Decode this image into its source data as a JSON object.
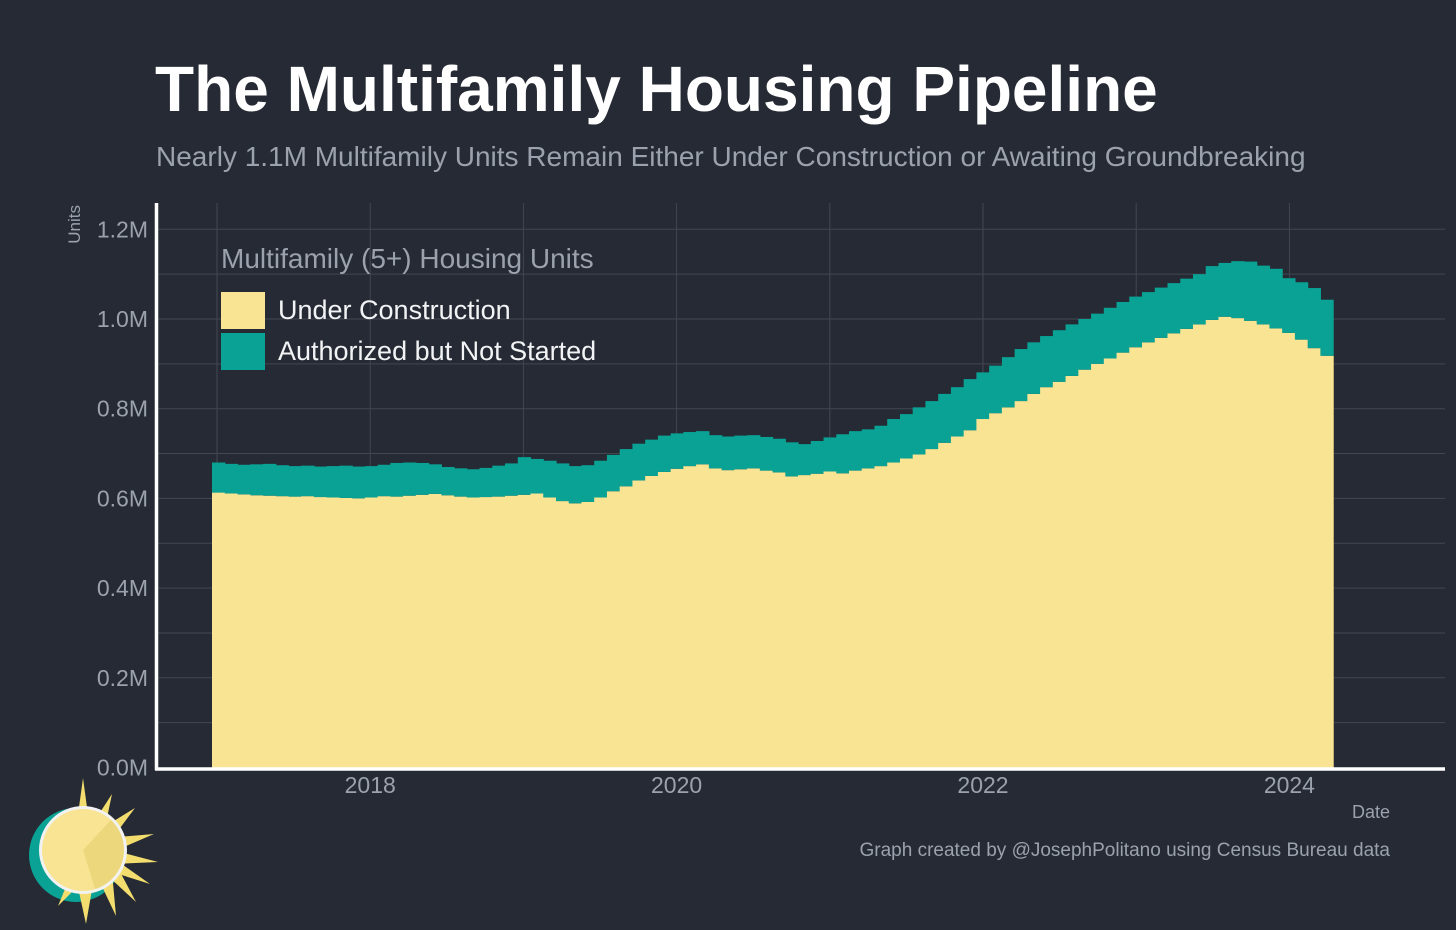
{
  "page": {
    "title": "The Multifamily Housing Pipeline",
    "subtitle": "Nearly 1.1M Multifamily Units Remain Either Under Construction or Awaiting Groundbreaking",
    "footer_credit": "Graph created by @JosephPolitano using Census Bureau data"
  },
  "colors": {
    "background": "#252a34",
    "under_construction_yellow": "#f8e493",
    "authorized_teal": "#09a294",
    "grid": "#424852",
    "axis_white": "#ffffff",
    "muted_text": "#9ca2ad",
    "legend_text": "#f2f3f5"
  },
  "chart_data": {
    "type": "bar",
    "stacked": true,
    "legend_title": "Multifamily (5+) Housing Units",
    "xlabel": "Date",
    "ylabel": "Units",
    "x_start_month": "2017-01",
    "x_end_month": "2024-04",
    "months_per_bar": 1,
    "ylim": [
      0,
      1.25
    ],
    "grid_y_interval_millions": 0.1,
    "grid_x_interval_years": 1,
    "y_ticks": [
      {
        "value": 0.0,
        "label": "0.0M"
      },
      {
        "value": 0.2,
        "label": "0.2M"
      },
      {
        "value": 0.4,
        "label": "0.4M"
      },
      {
        "value": 0.6,
        "label": "0.6M"
      },
      {
        "value": 0.8,
        "label": "0.8M"
      },
      {
        "value": 1.0,
        "label": "1.0M"
      },
      {
        "value": 1.2,
        "label": "1.2M"
      }
    ],
    "x_ticks": [
      {
        "value": 2018,
        "label": "2018"
      },
      {
        "value": 2020,
        "label": "2020"
      },
      {
        "value": 2022,
        "label": "2022"
      },
      {
        "value": 2024,
        "label": "2024"
      }
    ],
    "units": "millions of housing units",
    "series": [
      {
        "name": "Under Construction",
        "color": "#f8e493",
        "values": [
          0.613,
          0.611,
          0.609,
          0.607,
          0.606,
          0.605,
          0.604,
          0.605,
          0.603,
          0.602,
          0.601,
          0.6,
          0.602,
          0.605,
          0.604,
          0.606,
          0.608,
          0.61,
          0.607,
          0.604,
          0.602,
          0.603,
          0.604,
          0.606,
          0.608,
          0.611,
          0.602,
          0.594,
          0.589,
          0.592,
          0.602,
          0.616,
          0.627,
          0.64,
          0.65,
          0.659,
          0.666,
          0.672,
          0.676,
          0.667,
          0.663,
          0.665,
          0.667,
          0.662,
          0.658,
          0.649,
          0.652,
          0.655,
          0.66,
          0.656,
          0.662,
          0.667,
          0.672,
          0.68,
          0.689,
          0.698,
          0.71,
          0.724,
          0.738,
          0.752,
          0.777,
          0.79,
          0.803,
          0.817,
          0.833,
          0.848,
          0.86,
          0.873,
          0.887,
          0.9,
          0.912,
          0.925,
          0.937,
          0.948,
          0.958,
          0.968,
          0.978,
          0.988,
          0.998,
          1.005,
          1.002,
          0.996,
          0.988,
          0.979,
          0.969,
          0.954,
          0.935,
          0.918
        ]
      },
      {
        "name": "Authorized but Not Started",
        "color": "#09a294",
        "values": [
          0.067,
          0.066,
          0.066,
          0.069,
          0.071,
          0.069,
          0.068,
          0.068,
          0.068,
          0.07,
          0.072,
          0.071,
          0.07,
          0.07,
          0.075,
          0.074,
          0.071,
          0.066,
          0.063,
          0.063,
          0.063,
          0.065,
          0.069,
          0.072,
          0.084,
          0.077,
          0.082,
          0.084,
          0.083,
          0.082,
          0.082,
          0.081,
          0.083,
          0.082,
          0.081,
          0.081,
          0.079,
          0.076,
          0.074,
          0.074,
          0.075,
          0.075,
          0.074,
          0.075,
          0.075,
          0.076,
          0.069,
          0.073,
          0.076,
          0.087,
          0.088,
          0.087,
          0.09,
          0.097,
          0.099,
          0.105,
          0.107,
          0.109,
          0.11,
          0.114,
          0.104,
          0.106,
          0.112,
          0.116,
          0.115,
          0.114,
          0.115,
          0.115,
          0.113,
          0.112,
          0.113,
          0.113,
          0.113,
          0.112,
          0.112,
          0.112,
          0.112,
          0.112,
          0.12,
          0.12,
          0.127,
          0.132,
          0.131,
          0.133,
          0.122,
          0.128,
          0.134,
          0.125
        ]
      }
    ]
  }
}
